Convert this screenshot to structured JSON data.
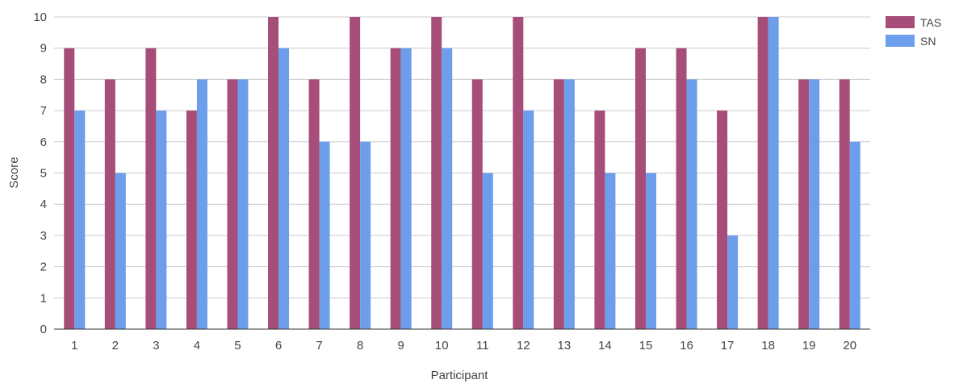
{
  "chart_data": {
    "type": "bar",
    "title": "",
    "xlabel": "Participant",
    "ylabel": "Score",
    "ylim": [
      0,
      10
    ],
    "yticks": [
      0,
      1,
      2,
      3,
      4,
      5,
      6,
      7,
      8,
      9,
      10
    ],
    "grid": true,
    "legend_position": "top-right",
    "categories": [
      "1",
      "2",
      "3",
      "4",
      "5",
      "6",
      "7",
      "8",
      "9",
      "10",
      "11",
      "12",
      "13",
      "14",
      "15",
      "16",
      "17",
      "18",
      "19",
      "20"
    ],
    "series": [
      {
        "name": "TAS",
        "color": "#a64d79",
        "values": [
          9,
          8,
          9,
          7,
          8,
          10,
          8,
          10,
          9,
          10,
          8,
          10,
          8,
          7,
          9,
          9,
          7,
          10,
          8,
          8
        ]
      },
      {
        "name": "SN",
        "color": "#6d9eeb",
        "values": [
          7,
          5,
          7,
          8,
          8,
          9,
          6,
          6,
          9,
          9,
          5,
          7,
          8,
          5,
          5,
          8,
          3,
          10,
          8,
          6
        ]
      }
    ]
  }
}
